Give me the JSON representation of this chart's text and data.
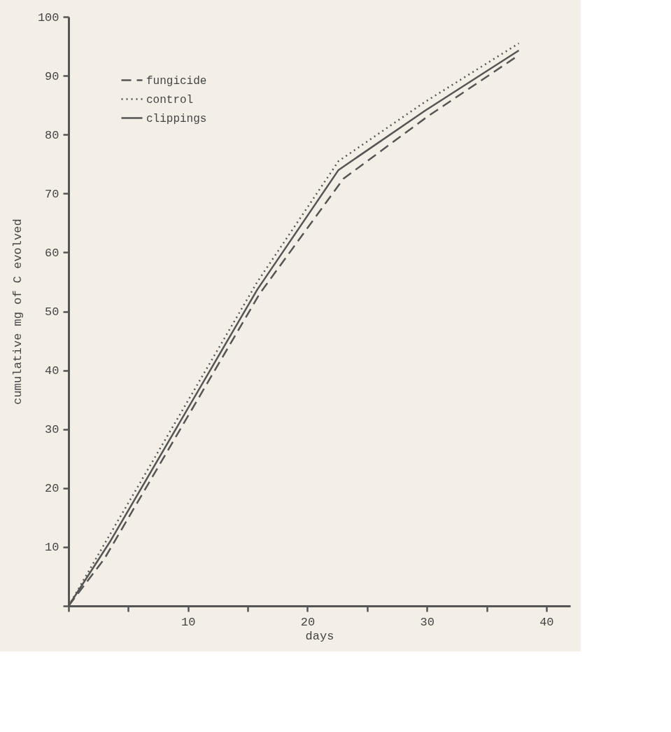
{
  "chart_data": {
    "type": "line",
    "xlabel": "days",
    "ylabel": "cumulative mg of C evolved",
    "xlim": [
      0,
      42
    ],
    "xticks": [
      {
        "value": 0,
        "label": null
      },
      {
        "value": 5,
        "label": null
      },
      10,
      {
        "value": 15,
        "label": null
      },
      20,
      {
        "value": 25,
        "label": null
      },
      30,
      {
        "value": 35,
        "label": null
      },
      40
    ],
    "ylim": [
      0,
      100
    ],
    "yticks": [
      {
        "value": 0,
        "label": null
      },
      10,
      20,
      30,
      40,
      50,
      60,
      70,
      80,
      90,
      100
    ],
    "grid": false,
    "legend": "top left",
    "marker": "none",
    "series": [
      {
        "name": "fungicide",
        "color": "#555555",
        "line_style": "dashed",
        "x": [
          0,
          3,
          16,
          23,
          30,
          37.7
        ],
        "values": [
          0,
          8,
          53,
          72.5,
          83,
          93.5
        ]
      },
      {
        "name": "control",
        "color": "#555555",
        "line_style": "dotted",
        "x": [
          0,
          4,
          15.8,
          22.6,
          29.8,
          37.7
        ],
        "values": [
          0,
          14,
          55,
          75.5,
          85.5,
          95.5
        ]
      },
      {
        "name": "clippings",
        "color": "#555555",
        "line_style": "solid",
        "x": [
          0,
          3.5,
          15.8,
          22.6,
          29.8,
          37.7
        ],
        "values": [
          0,
          11,
          53.7,
          74,
          84,
          94.3
        ]
      }
    ]
  }
}
